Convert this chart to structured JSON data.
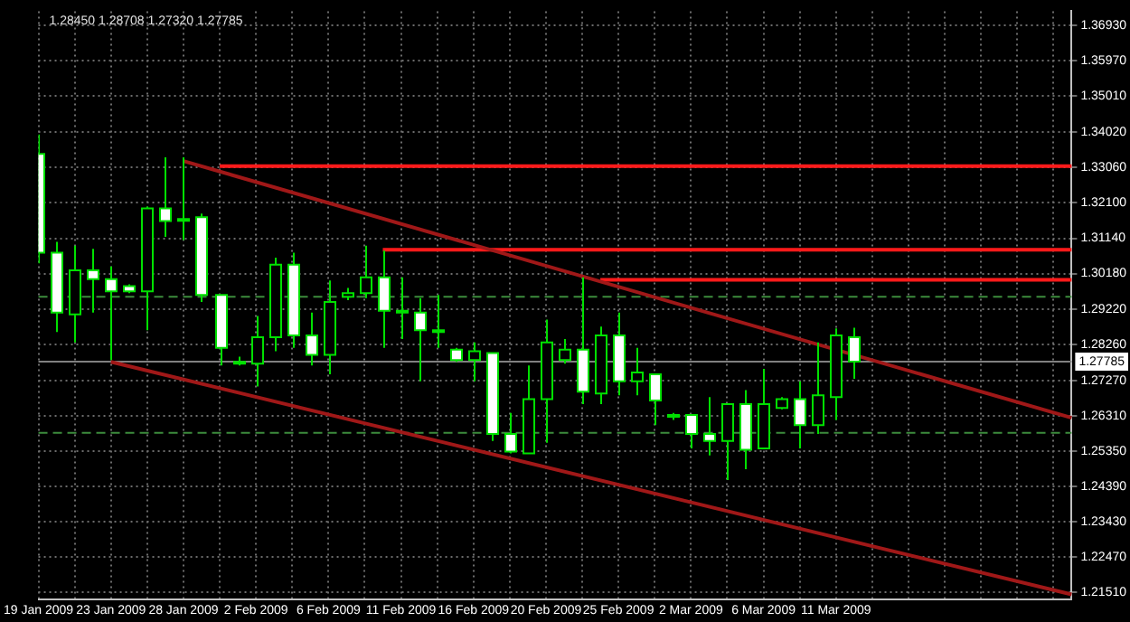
{
  "chart_data": {
    "type": "candlestick",
    "categories": [
      "19 Jan 2009",
      null,
      null,
      null,
      "23 Jan 2009",
      null,
      null,
      null,
      "28 Jan 2009",
      null,
      null,
      null,
      "2 Feb 2009",
      null,
      null,
      null,
      "6 Feb 2009",
      null,
      null,
      null,
      "11 Feb 2009",
      null,
      null,
      null,
      "16 Feb 2009",
      null,
      null,
      null,
      "20 Feb 2009",
      null,
      null,
      null,
      "25 Feb 2009",
      null,
      null,
      null,
      "2 Mar 2009",
      null,
      null,
      null,
      "6 Mar 2009",
      null,
      null,
      null,
      "11 Mar 2009",
      null,
      null,
      null,
      null,
      null,
      null,
      null,
      null,
      null,
      null,
      null,
      null,
      null
    ],
    "series": [
      {
        "type": "line",
        "color": "#a01818",
        "values": [
          null,
          null,
          null,
          null,
          null,
          null,
          null,
          null,
          1.3324,
          null,
          null,
          null,
          null,
          null,
          null,
          null,
          null,
          null,
          null,
          null,
          null,
          null,
          null,
          null,
          null,
          null,
          null,
          null,
          null,
          null,
          null,
          null,
          null,
          null,
          null,
          null,
          null,
          null,
          null,
          null,
          null,
          null,
          null,
          null,
          null,
          null,
          null,
          null,
          null,
          null,
          null,
          null,
          null,
          null,
          null,
          null,
          null,
          1.2626
        ]
      },
      {
        "type": "line",
        "color": "#a01818",
        "values": [
          null,
          null,
          null,
          null,
          1.2778,
          null,
          null,
          null,
          null,
          null,
          null,
          null,
          null,
          null,
          null,
          null,
          null,
          null,
          null,
          null,
          null,
          null,
          null,
          null,
          null,
          null,
          null,
          null,
          null,
          null,
          null,
          null,
          null,
          null,
          null,
          null,
          null,
          null,
          null,
          null,
          null,
          null,
          null,
          null,
          null,
          null,
          null,
          null,
          null,
          null,
          null,
          null,
          null,
          null,
          null,
          null,
          null,
          1.2146
        ]
      },
      {
        "type": "line",
        "color": "#ff1a1a",
        "values": [
          null,
          null,
          null,
          null,
          null,
          null,
          null,
          null,
          null,
          null,
          1.331,
          null,
          null,
          null,
          null,
          null,
          null,
          null,
          null,
          null,
          null,
          null,
          null,
          null,
          null,
          null,
          null,
          null,
          null,
          null,
          null,
          null,
          null,
          null,
          null,
          null,
          null,
          null,
          null,
          null,
          null,
          null,
          null,
          null,
          null,
          null,
          null,
          null,
          null,
          null,
          null,
          null,
          null,
          null,
          null,
          null,
          null,
          1.331
        ]
      },
      {
        "type": "line",
        "color": "#ff1a1a",
        "values": [
          null,
          null,
          null,
          null,
          null,
          null,
          null,
          null,
          null,
          null,
          null,
          null,
          null,
          null,
          null,
          null,
          null,
          null,
          null,
          1.3083,
          null,
          null,
          null,
          null,
          null,
          null,
          null,
          null,
          null,
          null,
          null,
          null,
          null,
          null,
          null,
          null,
          null,
          null,
          null,
          null,
          null,
          null,
          null,
          null,
          null,
          null,
          null,
          null,
          null,
          null,
          null,
          null,
          null,
          null,
          null,
          null,
          null,
          1.3083
        ]
      },
      {
        "type": "line",
        "color": "#ff1a1a",
        "values": [
          null,
          null,
          null,
          null,
          null,
          null,
          null,
          null,
          null,
          null,
          null,
          null,
          null,
          null,
          null,
          null,
          null,
          null,
          null,
          null,
          null,
          null,
          null,
          null,
          null,
          null,
          null,
          null,
          null,
          null,
          null,
          1.3001,
          null,
          null,
          null,
          null,
          null,
          null,
          null,
          null,
          null,
          null,
          null,
          null,
          null,
          null,
          null,
          null,
          null,
          null,
          null,
          null,
          null,
          null,
          null,
          null,
          null,
          1.3001
        ]
      }
    ],
    "colors": [
      "#ffffff",
      "#ffffff",
      "#000000",
      "#ffffff",
      "#ffffff",
      "#ffffff",
      "#000000",
      "#ffffff",
      "#000000",
      "#ffffff",
      "#ffffff",
      "#ffffff",
      "#000000",
      "#000000",
      "#ffffff",
      "#ffffff",
      "#000000",
      "#000000",
      "#000000",
      "#ffffff",
      "#ffffff",
      "#ffffff",
      "#000000",
      "#ffffff",
      "#000000",
      "#ffffff",
      "#ffffff",
      "#000000",
      "#000000",
      "#000000",
      "#ffffff",
      "#000000",
      "#ffffff",
      "#000000",
      "#ffffff",
      "#ffffff",
      "#ffffff",
      "#ffffff",
      "#000000",
      "#ffffff",
      "#000000",
      "#000000",
      "#ffffff",
      "#000000",
      "#000000",
      "#ffffff",
      null,
      null,
      null,
      null,
      null,
      null,
      null,
      null,
      null,
      null,
      null,
      null
    ],
    "ohlc": [
      [
        1.3343,
        1.3396,
        1.3046,
        1.3075
      ],
      [
        1.3075,
        1.3104,
        1.2859,
        1.2912
      ],
      [
        1.2907,
        1.3094,
        1.2831,
        1.3027
      ],
      [
        1.3027,
        1.3085,
        1.2912,
        1.3003
      ],
      [
        1.3003,
        1.3037,
        1.2783,
        1.297
      ],
      [
        1.2984,
        1.2989,
        1.2965,
        1.297
      ],
      [
        1.297,
        1.32,
        1.2864,
        1.3195
      ],
      [
        1.3195,
        1.3334,
        1.3118,
        1.3161
      ],
      [
        1.3166,
        1.3334,
        1.3109,
        1.3166
      ],
      [
        1.3171,
        1.3181,
        1.2941,
        1.296
      ],
      [
        1.296,
        1.296,
        1.2768,
        1.2816
      ],
      [
        1.2778,
        1.2792,
        1.2768,
        1.2773
      ],
      [
        1.2773,
        1.2903,
        1.2711,
        1.2845
      ],
      [
        1.2845,
        1.3061,
        1.2807,
        1.3042
      ],
      [
        1.3042,
        1.3075,
        1.2816,
        1.285
      ],
      [
        1.285,
        1.2912,
        1.2768,
        1.2797
      ],
      [
        1.2797,
        1.2999,
        1.2744,
        1.2941
      ],
      [
        1.2955,
        1.2979,
        1.2946,
        1.2965
      ],
      [
        1.2965,
        1.3094,
        1.2951,
        1.3008
      ],
      [
        1.3008,
        1.308,
        1.2816,
        1.2917
      ],
      [
        1.2917,
        1.3008,
        1.284,
        1.2912
      ],
      [
        1.2912,
        1.2951,
        1.2725,
        1.2864
      ],
      [
        1.2864,
        1.296,
        1.2816,
        1.2864
      ],
      [
        1.2811,
        1.2816,
        1.2778,
        1.2783
      ],
      [
        1.2783,
        1.2831,
        1.2725,
        1.2807
      ],
      [
        1.2802,
        1.2802,
        1.2563,
        1.2582
      ],
      [
        1.2582,
        1.2639,
        1.2529,
        1.2534
      ],
      [
        1.2529,
        1.2768,
        1.2529,
        1.2677
      ],
      [
        1.2677,
        1.2893,
        1.2558,
        1.2831
      ],
      [
        1.2783,
        1.284,
        1.2773,
        1.2811
      ],
      [
        1.2811,
        1.3008,
        1.2663,
        1.2697
      ],
      [
        1.2692,
        1.2874,
        1.2663,
        1.285
      ],
      [
        1.285,
        1.2912,
        1.2687,
        1.2725
      ],
      [
        1.2725,
        1.2816,
        1.2687,
        1.2749
      ],
      [
        1.2744,
        1.2744,
        1.2606,
        1.2673
      ],
      [
        1.2634,
        1.2639,
        1.262,
        1.2629
      ],
      [
        1.2634,
        1.2634,
        1.2543,
        1.2582
      ],
      [
        1.2582,
        1.2682,
        1.2524,
        1.2563
      ],
      [
        1.2563,
        1.2663,
        1.2457,
        1.2663
      ],
      [
        1.2663,
        1.2701,
        1.2486,
        1.2539
      ],
      [
        1.2543,
        1.2759,
        1.2543,
        1.2663
      ],
      [
        1.2653,
        1.2682,
        1.2649,
        1.2677
      ],
      [
        1.2677,
        1.2725,
        1.2543,
        1.2606
      ],
      [
        1.2606,
        1.2831,
        1.2582,
        1.2687
      ],
      [
        1.2682,
        1.2869,
        1.262,
        1.285
      ],
      [
        1.2845,
        1.28708,
        1.2732,
        1.27785
      ],
      null,
      null,
      null,
      null,
      null,
      null,
      null,
      null,
      null,
      null,
      null,
      null
    ],
    "ylim": [
      1.2132,
      1.3731
    ],
    "yticks": [
      {
        "value": 1.3693,
        "label": "1.36930"
      },
      {
        "value": 1.3597,
        "label": "1.35970"
      },
      {
        "value": 1.3501,
        "label": "1.35010"
      },
      {
        "value": 1.3402,
        "label": "1.34020"
      },
      {
        "value": 1.3306,
        "label": "1.33060"
      },
      {
        "value": 1.321,
        "label": "1.32100"
      },
      {
        "value": 1.3114,
        "label": "1.31140"
      },
      {
        "value": 1.3018,
        "label": "1.30180"
      },
      {
        "value": 1.2922,
        "label": "1.29220"
      },
      {
        "value": 1.2826,
        "label": "1.28260"
      },
      {
        "value": 1.2727,
        "label": "1.27270"
      },
      {
        "value": 1.2631,
        "label": "1.26310"
      },
      {
        "value": 1.2535,
        "label": "1.25350"
      },
      {
        "value": 1.2439,
        "label": "1.24390"
      },
      {
        "value": 1.2343,
        "label": "1.23430"
      },
      {
        "value": 1.2247,
        "label": "1.22470"
      },
      {
        "value": 1.2151,
        "label": "1.21510"
      }
    ],
    "grid": true,
    "ref_lines": [
      {
        "axis": "y",
        "value": 1.2955,
        "color": "#3c8c3c",
        "line_style": "dashed"
      },
      {
        "axis": "y",
        "value": 1.2585,
        "color": "#3c8c3c",
        "line_style": "dashed"
      },
      {
        "axis": "y",
        "value": 1.27785,
        "label": "1.27785",
        "color": "#808080",
        "line_style": "solid"
      }
    ],
    "annotations": [
      "1.28450 1.28708 1.27320 1.27785"
    ]
  }
}
